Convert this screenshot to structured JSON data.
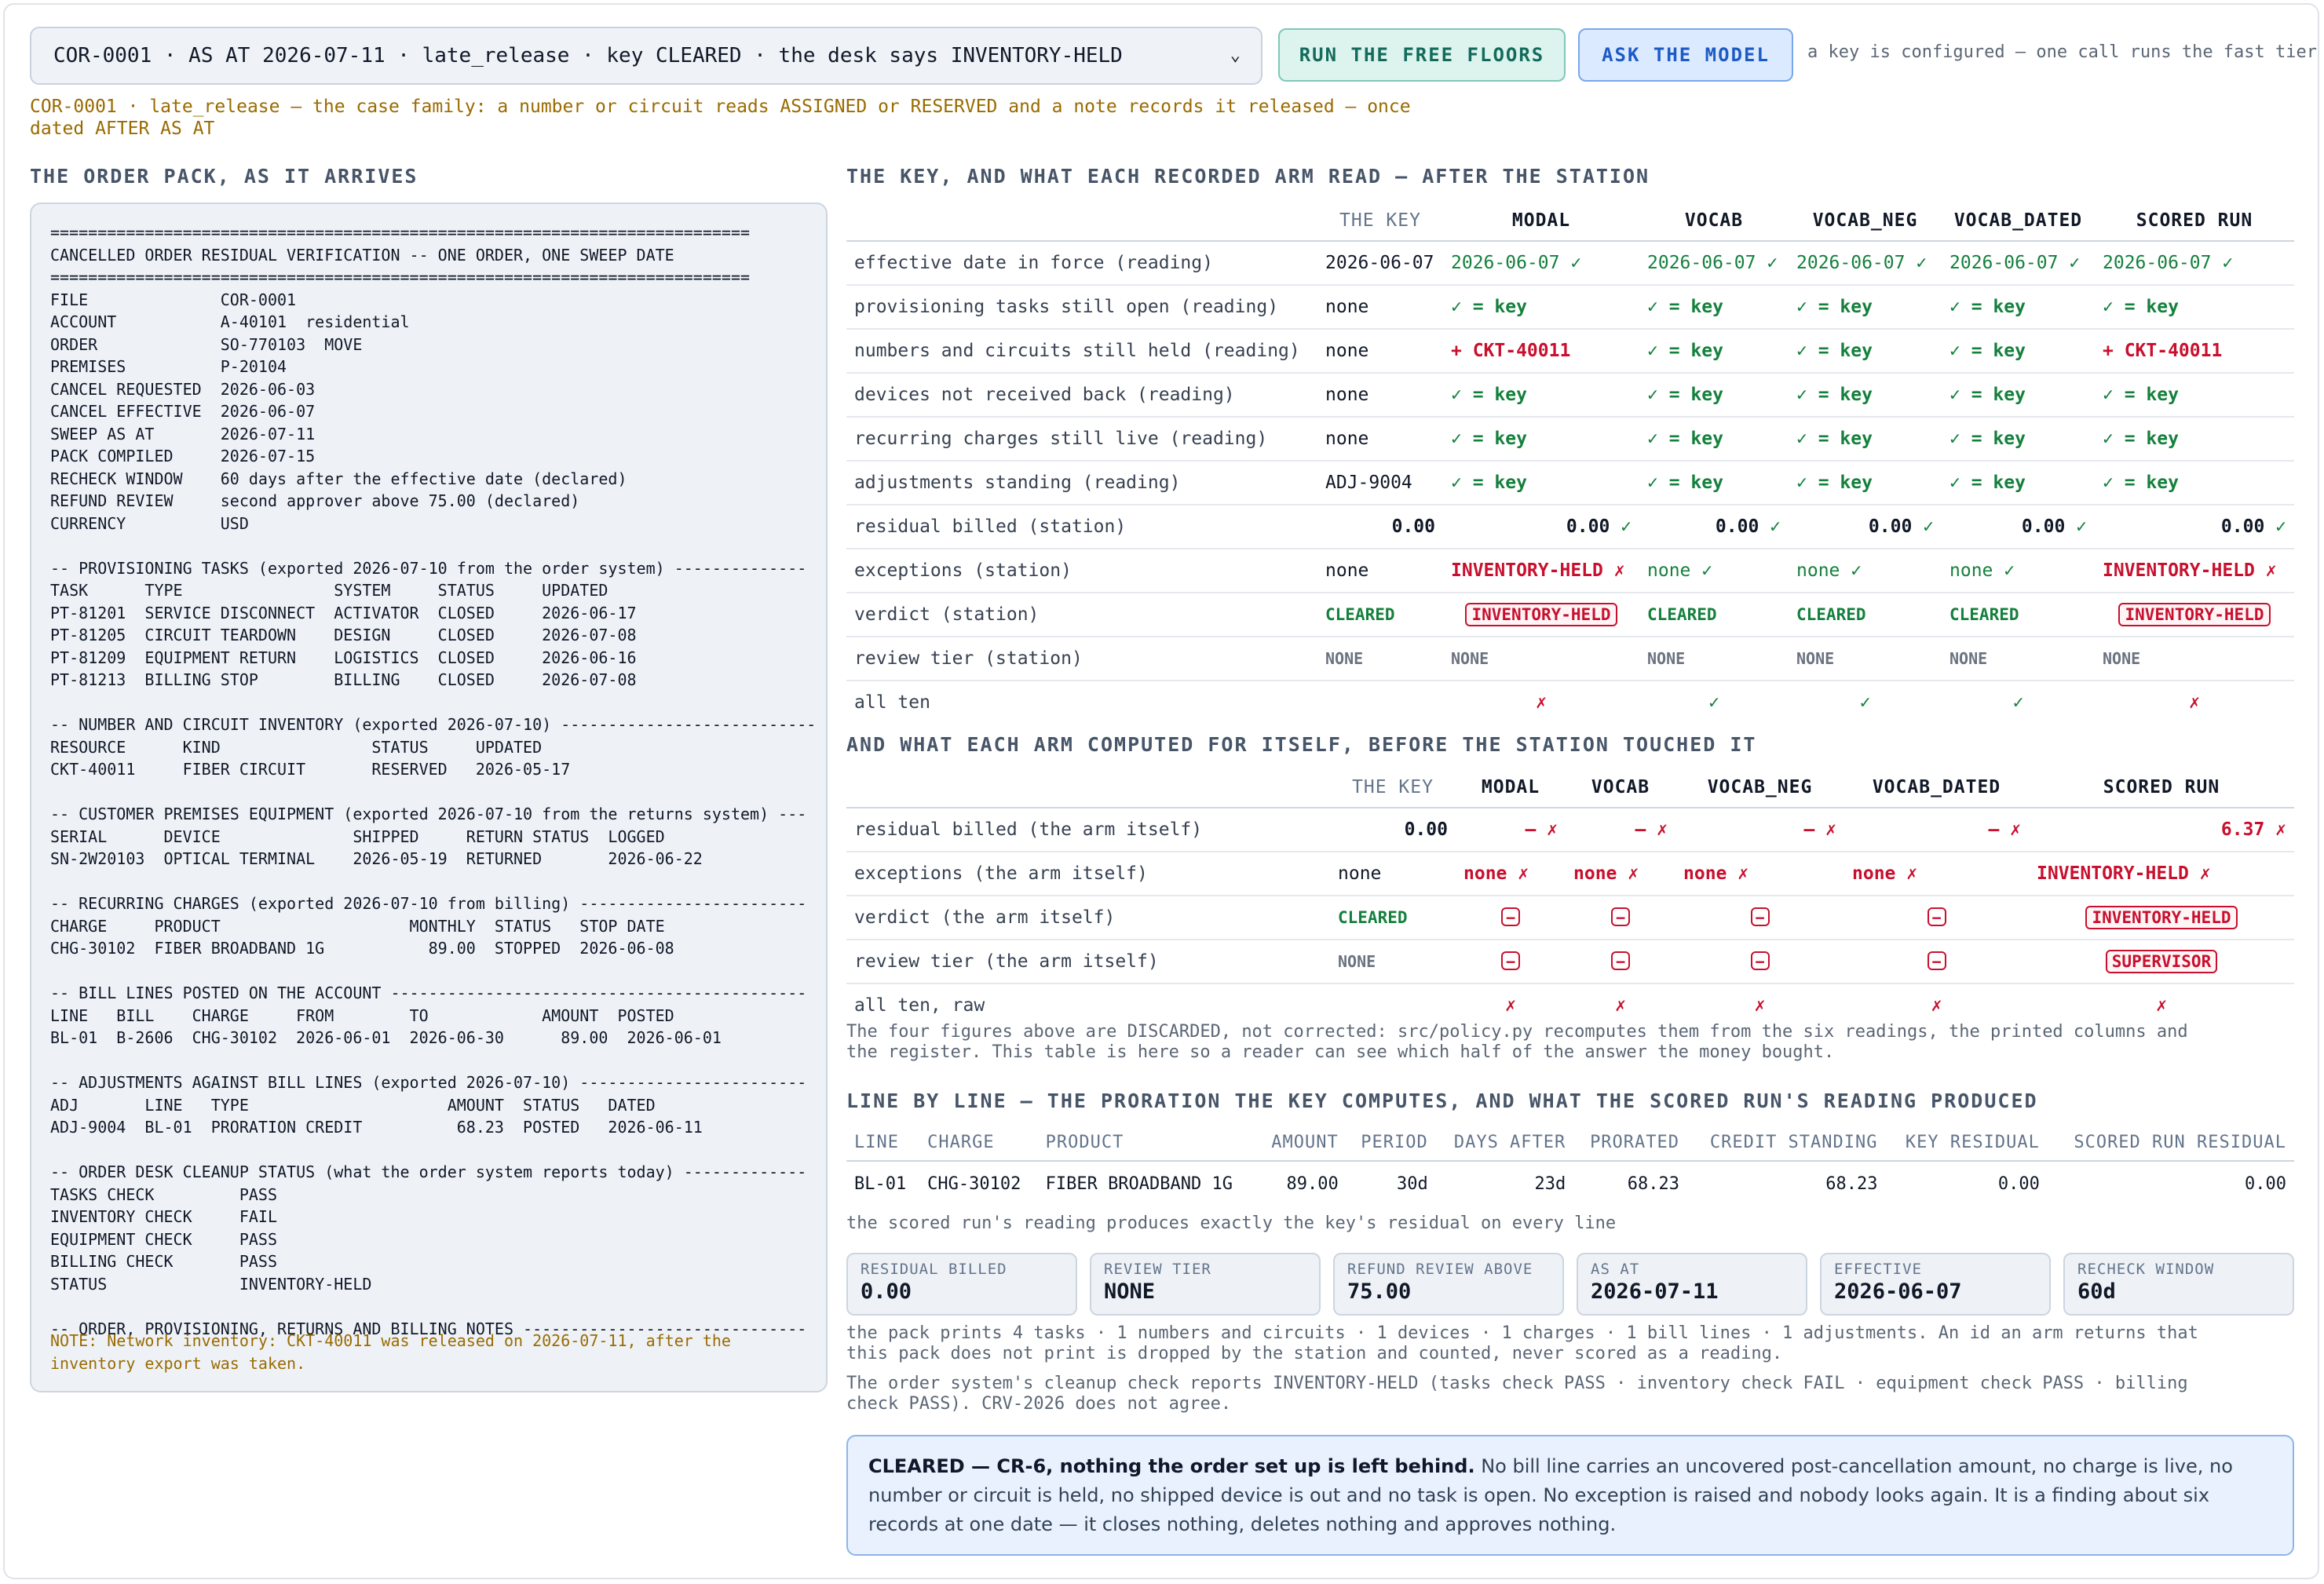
{
  "toolbar": {
    "case_select": "COR-0001 · AS AT 2026-07-11 · late_release · key CLEARED · the desk says INVENTORY-HELD",
    "run_free_floors": "RUN THE FREE FLOORS",
    "ask_model": "ASK THE MODEL",
    "key_note": "a key is configured — one call runs the fast tier"
  },
  "family_note": "COR-0001 · late_release — the case family: a number or circuit reads ASSIGNED or RESERVED and a note records it released — once dated AFTER AS AT",
  "pack": {
    "heading": "THE ORDER PACK, AS IT ARRIVES",
    "text": "==========================================================================\nCANCELLED ORDER RESIDUAL VERIFICATION -- ONE ORDER, ONE SWEEP DATE\n==========================================================================\nFILE              COR-0001\nACCOUNT           A-40101  residential\nORDER             SO-770103  MOVE\nPREMISES          P-20104\nCANCEL REQUESTED  2026-06-03\nCANCEL EFFECTIVE  2026-06-07\nSWEEP AS AT       2026-07-11\nPACK COMPILED     2026-07-15\nRECHECK WINDOW    60 days after the effective date (declared)\nREFUND REVIEW     second approver above 75.00 (declared)\nCURRENCY          USD\n\n-- PROVISIONING TASKS (exported 2026-07-10 from the order system) --------------\nTASK      TYPE                SYSTEM     STATUS     UPDATED\nPT-81201  SERVICE DISCONNECT  ACTIVATOR  CLOSED     2026-06-17\nPT-81205  CIRCUIT TEARDOWN    DESIGN     CLOSED     2026-07-08\nPT-81209  EQUIPMENT RETURN    LOGISTICS  CLOSED     2026-06-16\nPT-81213  BILLING STOP        BILLING    CLOSED     2026-07-08\n\n-- NUMBER AND CIRCUIT INVENTORY (exported 2026-07-10) ---------------------------\nRESOURCE      KIND                STATUS     UPDATED\nCKT-40011     FIBER CIRCUIT       RESERVED   2026-05-17\n\n-- CUSTOMER PREMISES EQUIPMENT (exported 2026-07-10 from the returns system) ---\nSERIAL      DEVICE              SHIPPED     RETURN STATUS  LOGGED\nSN-2W20103  OPTICAL TERMINAL    2026-05-19  RETURNED       2026-06-22\n\n-- RECURRING CHARGES (exported 2026-07-10 from billing) ------------------------\nCHARGE     PRODUCT                    MONTHLY  STATUS   STOP DATE\nCHG-30102  FIBER BROADBAND 1G           89.00  STOPPED  2026-06-08\n\n-- BILL LINES POSTED ON THE ACCOUNT --------------------------------------------\nLINE   BILL    CHARGE     FROM        TO            AMOUNT  POSTED\nBL-01  B-2606  CHG-30102  2026-06-01  2026-06-30      89.00  2026-06-01\n\n-- ADJUSTMENTS AGAINST BILL LINES (exported 2026-07-10) ------------------------\nADJ       LINE   TYPE                     AMOUNT  STATUS   DATED\nADJ-9004  BL-01  PRORATION CREDIT          68.23  POSTED   2026-06-11\n\n-- ORDER DESK CLEANUP STATUS (what the order system reports today) -------------\nTASKS CHECK         PASS\nINVENTORY CHECK     FAIL\nEQUIPMENT CHECK     PASS\nBILLING CHECK       PASS\nSTATUS              INVENTORY-HELD\n\n-- ORDER, PROVISIONING, RETURNS AND BILLING NOTES ------------------------------",
    "note": "NOTE: Network inventory: CKT-40011 was released on 2026-07-11, after the\ninventory export was taken."
  },
  "key_table": {
    "heading": "THE KEY, AND WHAT EACH RECORDED ARM READ — AFTER THE STATION",
    "columns": [
      "THE KEY",
      "MODAL",
      "VOCAB",
      "VOCAB_NEG",
      "VOCAB_DATED",
      "SCORED RUN"
    ],
    "rows": [
      {
        "label": "effective date in force (reading)",
        "key": "2026-06-07",
        "cells": [
          "2026-06-07 ✓",
          "2026-06-07 ✓",
          "2026-06-07 ✓",
          "2026-06-07 ✓",
          "2026-06-07 ✓"
        ],
        "kinds": [
          "ok",
          "ok",
          "ok",
          "ok",
          "ok"
        ]
      },
      {
        "label": "provisioning tasks still open (reading)",
        "key": "none",
        "cells": [
          "✓ = key",
          "✓ = key",
          "✓ = key",
          "✓ = key",
          "✓ = key"
        ],
        "kinds": [
          "okb",
          "okb",
          "okb",
          "okb",
          "okb"
        ]
      },
      {
        "label": "numbers and circuits still held (reading)",
        "key": "none",
        "cells": [
          "+ CKT-40011",
          "✓ = key",
          "✓ = key",
          "✓ = key",
          "+ CKT-40011"
        ],
        "kinds": [
          "bad",
          "okb",
          "okb",
          "okb",
          "bad"
        ]
      },
      {
        "label": "devices not received back (reading)",
        "key": "none",
        "cells": [
          "✓ = key",
          "✓ = key",
          "✓ = key",
          "✓ = key",
          "✓ = key"
        ],
        "kinds": [
          "okb",
          "okb",
          "okb",
          "okb",
          "okb"
        ]
      },
      {
        "label": "recurring charges still live (reading)",
        "key": "none",
        "cells": [
          "✓ = key",
          "✓ = key",
          "✓ = key",
          "✓ = key",
          "✓ = key"
        ],
        "kinds": [
          "okb",
          "okb",
          "okb",
          "okb",
          "okb"
        ]
      },
      {
        "label": "adjustments standing (reading)",
        "key": "ADJ-9004",
        "cells": [
          "✓ = key",
          "✓ = key",
          "✓ = key",
          "✓ = key",
          "✓ = key"
        ],
        "kinds": [
          "okb",
          "okb",
          "okb",
          "okb",
          "okb"
        ]
      },
      {
        "label": "residual billed (station)",
        "key": "0.00",
        "cells": [
          "0.00 ✓",
          "0.00 ✓",
          "0.00 ✓",
          "0.00 ✓",
          "0.00 ✓"
        ],
        "kinds": [
          "num",
          "num",
          "num",
          "num",
          "num"
        ]
      },
      {
        "label": "exceptions (station)",
        "key": "none",
        "cells": [
          "INVENTORY-HELD ✗",
          "none ✓",
          "none ✓",
          "none ✓",
          "INVENTORY-HELD ✗"
        ],
        "kinds": [
          "bad",
          "ok",
          "ok",
          "ok",
          "bad"
        ]
      },
      {
        "label": "verdict (station)",
        "key": "CLEARED",
        "cells": [
          "INVENTORY-HELD",
          "CLEARED",
          "CLEARED",
          "CLEARED",
          "INVENTORY-HELD"
        ],
        "kinds": [
          "pill",
          "clr",
          "clr",
          "clr",
          "pill"
        ]
      },
      {
        "label": "review tier (station)",
        "key": "NONE",
        "cells": [
          "NONE",
          "NONE",
          "NONE",
          "NONE",
          "NONE"
        ],
        "kinds": [
          "none",
          "none",
          "none",
          "none",
          "none"
        ]
      },
      {
        "label": "all ten",
        "key": "",
        "cells": [
          "✗",
          "✓",
          "✓",
          "✓",
          "✗"
        ],
        "kinds": [
          "badc",
          "okc",
          "okc",
          "okc",
          "badc"
        ]
      }
    ]
  },
  "arm_table": {
    "heading": "AND WHAT EACH ARM COMPUTED FOR ITSELF, BEFORE THE STATION TOUCHED IT",
    "columns": [
      "THE KEY",
      "MODAL",
      "VOCAB",
      "VOCAB_NEG",
      "VOCAB_DATED",
      "SCORED RUN"
    ],
    "rows": [
      {
        "label": "residual billed (the arm itself)",
        "key": "0.00",
        "cells": [
          "— ✗",
          "— ✗",
          "— ✗",
          "— ✗",
          "6.37 ✗"
        ],
        "kinds": [
          "badr",
          "badr",
          "badr",
          "badr",
          "badr"
        ]
      },
      {
        "label": "exceptions (the arm itself)",
        "key": "none",
        "cells": [
          "none ✗",
          "none ✗",
          "none ✗",
          "none ✗",
          "INVENTORY-HELD ✗"
        ],
        "kinds": [
          "bad",
          "bad",
          "bad",
          "bad",
          "bad"
        ]
      },
      {
        "label": "verdict (the arm itself)",
        "key": "CLEARED",
        "cells": [
          "—",
          "—",
          "—",
          "—",
          "INVENTORY-HELD"
        ],
        "kinds": [
          "minus",
          "minus",
          "minus",
          "minus",
          "pill"
        ]
      },
      {
        "label": "review tier (the arm itself)",
        "key": "NONE",
        "cells": [
          "—",
          "—",
          "—",
          "—",
          "SUPERVISOR"
        ],
        "kinds": [
          "minus",
          "minus",
          "minus",
          "minus",
          "pill"
        ]
      },
      {
        "label": "all ten, raw",
        "key": "",
        "cells": [
          "✗",
          "✗",
          "✗",
          "✗",
          "✗"
        ],
        "kinds": [
          "badc",
          "badc",
          "badc",
          "badc",
          "badc"
        ]
      }
    ],
    "discard_note": "The four figures above are DISCARDED, not corrected: src/policy.py recomputes them from the six readings, the printed columns and the register. This table is here so a reader can see which half of the answer the money bought."
  },
  "line_table": {
    "heading": "LINE BY LINE — THE PRORATION THE KEY COMPUTES, AND WHAT THE SCORED RUN'S READING PRODUCED",
    "columns": [
      "LINE",
      "CHARGE",
      "PRODUCT",
      "AMOUNT",
      "PERIOD",
      "DAYS AFTER",
      "PRORATED",
      "CREDIT STANDING",
      "KEY RESIDUAL",
      "SCORED RUN RESIDUAL"
    ],
    "rows": [
      [
        "BL-01",
        "CHG-30102",
        "FIBER BROADBAND 1G",
        "89.00",
        "30d",
        "23d",
        "68.23",
        "68.23",
        "0.00",
        "0.00"
      ]
    ],
    "footer": "the scored run's reading produces exactly the key's residual on every line"
  },
  "cards": [
    {
      "label": "RESIDUAL BILLED",
      "value": "0.00"
    },
    {
      "label": "REVIEW TIER",
      "value": "NONE"
    },
    {
      "label": "REFUND REVIEW ABOVE",
      "value": "75.00"
    },
    {
      "label": "AS AT",
      "value": "2026-07-11"
    },
    {
      "label": "EFFECTIVE",
      "value": "2026-06-07"
    },
    {
      "label": "RECHECK WINDOW",
      "value": "60d"
    }
  ],
  "counts_note": "the pack prints 4 tasks · 1 numbers and circuits · 1 devices · 1 charges · 1 bill lines · 1 adjustments. An id an arm returns that this pack does not print is dropped by the station and counted, never scored as a reading.",
  "desk_note": "The order system's cleanup check reports INVENTORY-HELD (tasks check PASS · inventory check FAIL · equipment check PASS · billing check PASS). CRV-2026 does not agree.",
  "verdict": {
    "lead": "CLEARED — CR-6, nothing the order set up is left behind.",
    "body": " No bill line carries an uncovered post-cancellation amount, no charge is live, no number or circuit is held, no shipped device is out and no task is open. No exception is raised and nobody looks again. It is a finding about six records at one date — it closes nothing, deletes nothing and approves nothing."
  }
}
